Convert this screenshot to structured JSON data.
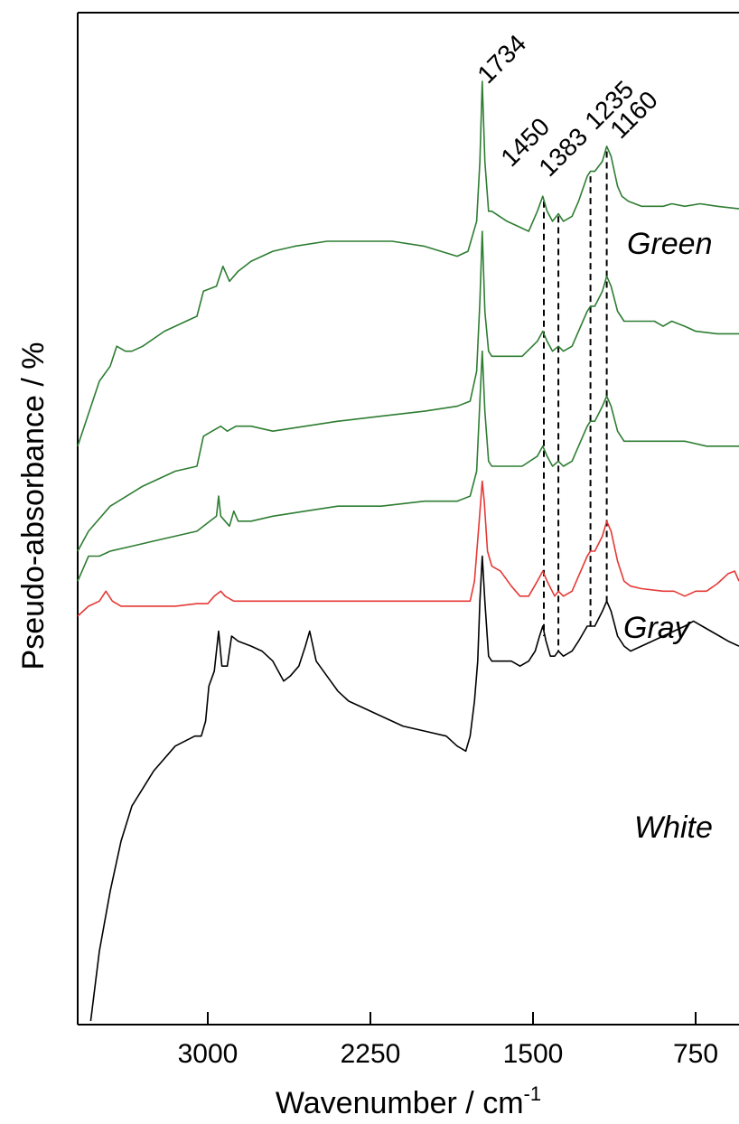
{
  "chart_data": {
    "type": "line",
    "title": "",
    "xlabel_main": "Wavenumber / cm",
    "xlabel_sup": "-1",
    "ylabel": "Pseudo-absorbance   / %",
    "xlim": [
      3600,
      550
    ],
    "x_reversed": true,
    "x_ticks": [
      3000,
      2250,
      1500,
      750
    ],
    "x_tick_labels": [
      "3000",
      "2250",
      "1500",
      "750"
    ],
    "y_ticks": false,
    "grid": false,
    "peak_labels": [
      {
        "text": "1734",
        "x": 1734
      },
      {
        "text": "1450",
        "x": 1450
      },
      {
        "text": "1383",
        "x": 1383
      },
      {
        "text": "1235",
        "x": 1235
      },
      {
        "text": "1160",
        "x": 1160
      }
    ],
    "series_labels": [
      "Green",
      "Gray",
      "White"
    ],
    "series": [
      {
        "name": "Green",
        "color": "#2e7d32",
        "points": [
          [
            3600,
            0.43
          ],
          [
            3500,
            0.56
          ],
          [
            3450,
            0.59
          ],
          [
            3420,
            0.63
          ],
          [
            3380,
            0.62
          ],
          [
            3350,
            0.62
          ],
          [
            3300,
            0.63
          ],
          [
            3200,
            0.66
          ],
          [
            3100,
            0.68
          ],
          [
            3050,
            0.69
          ],
          [
            3020,
            0.74
          ],
          [
            2960,
            0.75
          ],
          [
            2930,
            0.79
          ],
          [
            2900,
            0.76
          ],
          [
            2860,
            0.78
          ],
          [
            2800,
            0.8
          ],
          [
            2700,
            0.82
          ],
          [
            2600,
            0.83
          ],
          [
            2450,
            0.84
          ],
          [
            2300,
            0.84
          ],
          [
            2150,
            0.84
          ],
          [
            2000,
            0.83
          ],
          [
            1850,
            0.81
          ],
          [
            1800,
            0.82
          ],
          [
            1760,
            0.88
          ],
          [
            1745,
            1.0
          ],
          [
            1734,
            1.16
          ],
          [
            1722,
            1.0
          ],
          [
            1705,
            0.9
          ],
          [
            1690,
            0.9
          ],
          [
            1620,
            0.88
          ],
          [
            1570,
            0.87
          ],
          [
            1520,
            0.86
          ],
          [
            1480,
            0.9
          ],
          [
            1455,
            0.93
          ],
          [
            1435,
            0.9
          ],
          [
            1410,
            0.88
          ],
          [
            1383,
            0.895
          ],
          [
            1360,
            0.88
          ],
          [
            1320,
            0.89
          ],
          [
            1290,
            0.92
          ],
          [
            1250,
            0.97
          ],
          [
            1235,
            0.98
          ],
          [
            1215,
            0.98
          ],
          [
            1180,
            1.0
          ],
          [
            1160,
            1.03
          ],
          [
            1140,
            1.01
          ],
          [
            1110,
            0.95
          ],
          [
            1090,
            0.93
          ],
          [
            1060,
            0.92
          ],
          [
            1000,
            0.91
          ],
          [
            900,
            0.91
          ],
          [
            860,
            0.915
          ],
          [
            800,
            0.91
          ],
          [
            730,
            0.915
          ],
          [
            650,
            0.91
          ],
          [
            550,
            0.905
          ]
        ]
      },
      {
        "name": "",
        "color": "#2e7d32",
        "points": [
          [
            3600,
            0.22
          ],
          [
            3550,
            0.26
          ],
          [
            3450,
            0.31
          ],
          [
            3300,
            0.35
          ],
          [
            3150,
            0.38
          ],
          [
            3050,
            0.39
          ],
          [
            3020,
            0.45
          ],
          [
            2980,
            0.46
          ],
          [
            2940,
            0.47
          ],
          [
            2910,
            0.46
          ],
          [
            2870,
            0.47
          ],
          [
            2800,
            0.47
          ],
          [
            2700,
            0.46
          ],
          [
            2550,
            0.47
          ],
          [
            2400,
            0.48
          ],
          [
            2200,
            0.49
          ],
          [
            2000,
            0.5
          ],
          [
            1850,
            0.51
          ],
          [
            1790,
            0.52
          ],
          [
            1760,
            0.58
          ],
          [
            1745,
            0.72
          ],
          [
            1734,
            0.86
          ],
          [
            1722,
            0.7
          ],
          [
            1705,
            0.62
          ],
          [
            1690,
            0.61
          ],
          [
            1620,
            0.61
          ],
          [
            1550,
            0.61
          ],
          [
            1480,
            0.64
          ],
          [
            1455,
            0.66
          ],
          [
            1435,
            0.64
          ],
          [
            1410,
            0.62
          ],
          [
            1383,
            0.63
          ],
          [
            1360,
            0.62
          ],
          [
            1320,
            0.63
          ],
          [
            1290,
            0.66
          ],
          [
            1250,
            0.7
          ],
          [
            1235,
            0.71
          ],
          [
            1215,
            0.71
          ],
          [
            1180,
            0.74
          ],
          [
            1160,
            0.77
          ],
          [
            1140,
            0.75
          ],
          [
            1110,
            0.7
          ],
          [
            1080,
            0.68
          ],
          [
            1000,
            0.68
          ],
          [
            940,
            0.68
          ],
          [
            900,
            0.67
          ],
          [
            860,
            0.68
          ],
          [
            800,
            0.67
          ],
          [
            750,
            0.66
          ],
          [
            650,
            0.655
          ],
          [
            550,
            0.655
          ]
        ]
      },
      {
        "name": "",
        "color": "#2e7d32",
        "points": [
          [
            3600,
            0.16
          ],
          [
            3570,
            0.19
          ],
          [
            3550,
            0.21
          ],
          [
            3500,
            0.21
          ],
          [
            3450,
            0.22
          ],
          [
            3350,
            0.23
          ],
          [
            3250,
            0.24
          ],
          [
            3150,
            0.25
          ],
          [
            3050,
            0.26
          ],
          [
            2990,
            0.28
          ],
          [
            2960,
            0.29
          ],
          [
            2950,
            0.33
          ],
          [
            2940,
            0.29
          ],
          [
            2900,
            0.27
          ],
          [
            2880,
            0.3
          ],
          [
            2860,
            0.28
          ],
          [
            2800,
            0.28
          ],
          [
            2700,
            0.29
          ],
          [
            2550,
            0.3
          ],
          [
            2400,
            0.31
          ],
          [
            2200,
            0.31
          ],
          [
            2000,
            0.32
          ],
          [
            1850,
            0.32
          ],
          [
            1790,
            0.33
          ],
          [
            1760,
            0.38
          ],
          [
            1745,
            0.52
          ],
          [
            1734,
            0.62
          ],
          [
            1722,
            0.5
          ],
          [
            1705,
            0.4
          ],
          [
            1690,
            0.39
          ],
          [
            1620,
            0.39
          ],
          [
            1550,
            0.39
          ],
          [
            1480,
            0.41
          ],
          [
            1455,
            0.43
          ],
          [
            1435,
            0.41
          ],
          [
            1410,
            0.39
          ],
          [
            1383,
            0.4
          ],
          [
            1360,
            0.39
          ],
          [
            1320,
            0.4
          ],
          [
            1290,
            0.43
          ],
          [
            1250,
            0.47
          ],
          [
            1235,
            0.48
          ],
          [
            1215,
            0.48
          ],
          [
            1180,
            0.51
          ],
          [
            1160,
            0.53
          ],
          [
            1140,
            0.51
          ],
          [
            1110,
            0.46
          ],
          [
            1080,
            0.44
          ],
          [
            1000,
            0.44
          ],
          [
            900,
            0.44
          ],
          [
            800,
            0.44
          ],
          [
            700,
            0.43
          ],
          [
            550,
            0.43
          ]
        ]
      },
      {
        "name": "Gray",
        "color": "#e53935",
        "points": [
          [
            3600,
            0.09
          ],
          [
            3550,
            0.11
          ],
          [
            3500,
            0.12
          ],
          [
            3470,
            0.14
          ],
          [
            3440,
            0.12
          ],
          [
            3400,
            0.11
          ],
          [
            3300,
            0.11
          ],
          [
            3150,
            0.11
          ],
          [
            3050,
            0.115
          ],
          [
            3000,
            0.115
          ],
          [
            2970,
            0.13
          ],
          [
            2940,
            0.14
          ],
          [
            2920,
            0.13
          ],
          [
            2880,
            0.12
          ],
          [
            2800,
            0.12
          ],
          [
            2600,
            0.12
          ],
          [
            2400,
            0.12
          ],
          [
            2200,
            0.12
          ],
          [
            2000,
            0.12
          ],
          [
            1850,
            0.12
          ],
          [
            1790,
            0.12
          ],
          [
            1770,
            0.16
          ],
          [
            1750,
            0.27
          ],
          [
            1734,
            0.36
          ],
          [
            1725,
            0.32
          ],
          [
            1710,
            0.22
          ],
          [
            1690,
            0.19
          ],
          [
            1650,
            0.18
          ],
          [
            1600,
            0.15
          ],
          [
            1560,
            0.13
          ],
          [
            1520,
            0.13
          ],
          [
            1480,
            0.16
          ],
          [
            1455,
            0.18
          ],
          [
            1435,
            0.16
          ],
          [
            1400,
            0.13
          ],
          [
            1383,
            0.14
          ],
          [
            1360,
            0.13
          ],
          [
            1320,
            0.14
          ],
          [
            1290,
            0.17
          ],
          [
            1250,
            0.21
          ],
          [
            1235,
            0.22
          ],
          [
            1215,
            0.22
          ],
          [
            1180,
            0.25
          ],
          [
            1160,
            0.28
          ],
          [
            1140,
            0.26
          ],
          [
            1110,
            0.2
          ],
          [
            1080,
            0.16
          ],
          [
            1050,
            0.15
          ],
          [
            1000,
            0.145
          ],
          [
            900,
            0.14
          ],
          [
            850,
            0.14
          ],
          [
            800,
            0.13
          ],
          [
            750,
            0.14
          ],
          [
            700,
            0.14
          ],
          [
            650,
            0.155
          ],
          [
            600,
            0.175
          ],
          [
            570,
            0.18
          ],
          [
            550,
            0.16
          ]
        ]
      },
      {
        "name": "White",
        "color": "#000000",
        "points": [
          [
            3540,
            -0.72
          ],
          [
            3500,
            -0.58
          ],
          [
            3450,
            -0.46
          ],
          [
            3400,
            -0.36
          ],
          [
            3350,
            -0.29
          ],
          [
            3250,
            -0.22
          ],
          [
            3150,
            -0.17
          ],
          [
            3060,
            -0.15
          ],
          [
            3030,
            -0.15
          ],
          [
            3010,
            -0.12
          ],
          [
            2995,
            -0.05
          ],
          [
            2970,
            -0.02
          ],
          [
            2950,
            0.06
          ],
          [
            2935,
            -0.01
          ],
          [
            2910,
            -0.01
          ],
          [
            2890,
            0.05
          ],
          [
            2860,
            0.04
          ],
          [
            2800,
            0.03
          ],
          [
            2750,
            0.02
          ],
          [
            2700,
            0.0
          ],
          [
            2650,
            -0.04
          ],
          [
            2620,
            -0.03
          ],
          [
            2580,
            -0.01
          ],
          [
            2550,
            0.03
          ],
          [
            2530,
            0.06
          ],
          [
            2500,
            0.0
          ],
          [
            2450,
            -0.03
          ],
          [
            2400,
            -0.06
          ],
          [
            2350,
            -0.08
          ],
          [
            2300,
            -0.09
          ],
          [
            2200,
            -0.11
          ],
          [
            2100,
            -0.13
          ],
          [
            2000,
            -0.14
          ],
          [
            1900,
            -0.15
          ],
          [
            1850,
            -0.17
          ],
          [
            1810,
            -0.18
          ],
          [
            1790,
            -0.15
          ],
          [
            1770,
            -0.08
          ],
          [
            1755,
            0.0
          ],
          [
            1745,
            0.12
          ],
          [
            1734,
            0.21
          ],
          [
            1722,
            0.12
          ],
          [
            1705,
            0.01
          ],
          [
            1690,
            0.0
          ],
          [
            1650,
            0.0
          ],
          [
            1600,
            0.0
          ],
          [
            1560,
            -0.01
          ],
          [
            1520,
            0.0
          ],
          [
            1490,
            0.02
          ],
          [
            1470,
            0.05
          ],
          [
            1455,
            0.07
          ],
          [
            1440,
            0.04
          ],
          [
            1420,
            0.01
          ],
          [
            1400,
            0.01
          ],
          [
            1383,
            0.02
          ],
          [
            1360,
            0.01
          ],
          [
            1320,
            0.02
          ],
          [
            1290,
            0.04
          ],
          [
            1250,
            0.07
          ],
          [
            1235,
            0.07
          ],
          [
            1215,
            0.07
          ],
          [
            1180,
            0.1
          ],
          [
            1160,
            0.12
          ],
          [
            1140,
            0.1
          ],
          [
            1110,
            0.05
          ],
          [
            1080,
            0.03
          ],
          [
            1050,
            0.02
          ],
          [
            1000,
            0.03
          ],
          [
            950,
            0.04
          ],
          [
            900,
            0.05
          ],
          [
            850,
            0.06
          ],
          [
            800,
            0.07
          ],
          [
            760,
            0.08
          ],
          [
            720,
            0.07
          ],
          [
            680,
            0.06
          ],
          [
            640,
            0.05
          ],
          [
            600,
            0.04
          ],
          [
            550,
            0.03
          ]
        ]
      }
    ],
    "dashed_lines": [
      {
        "x": 1450,
        "y_top": 0.92,
        "y_bottom": 0.05
      },
      {
        "x": 1383,
        "y_top": 0.89,
        "y_bottom": 0.02
      },
      {
        "x": 1235,
        "y_top": 0.97,
        "y_bottom": 0.07
      },
      {
        "x": 1160,
        "y_top": 1.02,
        "y_bottom": 0.12
      }
    ]
  }
}
